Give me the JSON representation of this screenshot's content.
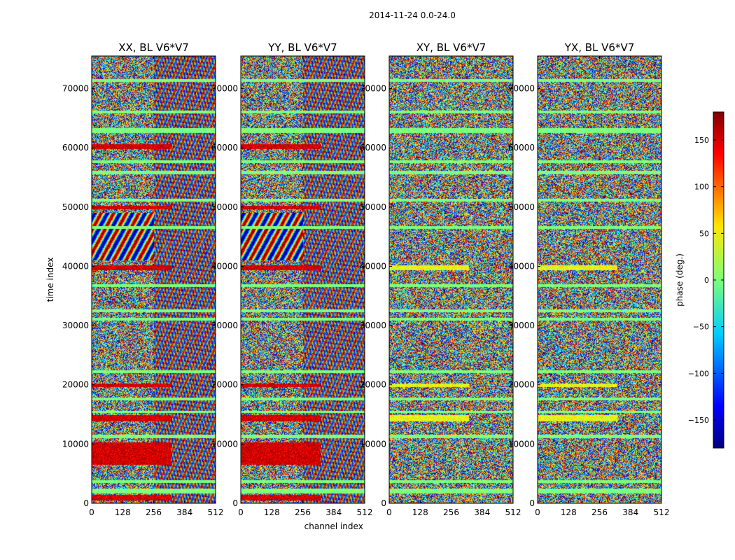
{
  "suptitle": "2014-11-24 0.0-24.0",
  "chart_data": [
    {
      "type": "heatmap",
      "title": "XX, BL V6*V7",
      "xlabel": "",
      "ylabel": "time index",
      "xlim": [
        0,
        512
      ],
      "ylim": [
        0,
        75500
      ],
      "xticks": [
        0,
        128,
        256,
        384,
        512
      ],
      "yticks": [
        0,
        10000,
        20000,
        30000,
        40000,
        50000,
        60000,
        70000
      ],
      "value": "phase (deg.)",
      "coherent_bands": [
        [
          400,
          1400
        ],
        [
          6500,
          10200
        ],
        [
          13800,
          14800
        ],
        [
          19600,
          20200
        ],
        [
          39300,
          40200
        ],
        [
          49600,
          50200
        ],
        [
          59800,
          60600
        ]
      ],
      "flagged_bands": [
        [
          1600,
          2400
        ],
        [
          3400,
          3900
        ],
        [
          11000,
          11500
        ],
        [
          15200,
          15600
        ],
        [
          17300,
          17800
        ],
        [
          22000,
          22400
        ],
        [
          30800,
          31300
        ],
        [
          32200,
          32700
        ],
        [
          36500,
          37000
        ],
        [
          46300,
          46800
        ],
        [
          51000,
          51400
        ],
        [
          55600,
          56200
        ],
        [
          57400,
          57900
        ],
        [
          62600,
          63400
        ],
        [
          65900,
          66300
        ],
        [
          71200,
          71600
        ]
      ]
    },
    {
      "type": "heatmap",
      "title": "YY, BL V6*V7",
      "xlabel": "channel index",
      "ylabel": "",
      "xlim": [
        0,
        512
      ],
      "ylim": [
        0,
        75500
      ],
      "xticks": [
        0,
        128,
        256,
        384,
        512
      ],
      "yticks": [
        0,
        10000,
        20000,
        30000,
        40000,
        50000,
        60000,
        70000
      ],
      "value": "phase (deg.)",
      "coherent_bands": [
        [
          400,
          1400
        ],
        [
          6500,
          10200
        ],
        [
          13800,
          14800
        ],
        [
          19600,
          20200
        ],
        [
          39300,
          40200
        ],
        [
          49600,
          50200
        ],
        [
          59800,
          60600
        ]
      ],
      "flagged_bands": [
        [
          1600,
          2400
        ],
        [
          3400,
          3900
        ],
        [
          11000,
          11500
        ],
        [
          15200,
          15600
        ],
        [
          17300,
          17800
        ],
        [
          22000,
          22400
        ],
        [
          30800,
          31300
        ],
        [
          32200,
          32700
        ],
        [
          36500,
          37000
        ],
        [
          46300,
          46800
        ],
        [
          51000,
          51400
        ],
        [
          55600,
          56200
        ],
        [
          57400,
          57900
        ],
        [
          62600,
          63400
        ],
        [
          65900,
          66300
        ],
        [
          71200,
          71600
        ]
      ]
    },
    {
      "type": "heatmap",
      "title": "XY, BL V6*V7",
      "xlabel": "",
      "ylabel": "",
      "xlim": [
        0,
        512
      ],
      "ylim": [
        0,
        75500
      ],
      "xticks": [
        0,
        128,
        256,
        384,
        512
      ],
      "yticks": [
        0,
        10000,
        20000,
        30000,
        40000,
        50000,
        60000,
        70000
      ],
      "value": "phase (deg.)",
      "coherent_bands": [
        [
          13800,
          14800
        ],
        [
          19600,
          20200
        ],
        [
          39300,
          40200
        ]
      ],
      "flagged_bands": [
        [
          1600,
          2400
        ],
        [
          3400,
          3900
        ],
        [
          11000,
          11500
        ],
        [
          15200,
          15600
        ],
        [
          17300,
          17800
        ],
        [
          22000,
          22400
        ],
        [
          30800,
          31300
        ],
        [
          32200,
          32700
        ],
        [
          36500,
          37000
        ],
        [
          46300,
          46800
        ],
        [
          51000,
          51400
        ],
        [
          55600,
          56200
        ],
        [
          57400,
          57900
        ],
        [
          62600,
          63400
        ],
        [
          65900,
          66300
        ],
        [
          71200,
          71600
        ]
      ]
    },
    {
      "type": "heatmap",
      "title": "YX, BL V6*V7",
      "xlabel": "",
      "ylabel": "",
      "xlim": [
        0,
        512
      ],
      "ylim": [
        0,
        75500
      ],
      "xticks": [
        0,
        128,
        256,
        384,
        512
      ],
      "yticks": [
        0,
        10000,
        20000,
        30000,
        40000,
        50000,
        60000,
        70000
      ],
      "value": "phase (deg.)",
      "coherent_bands": [
        [
          13800,
          14800
        ],
        [
          19600,
          20200
        ],
        [
          39300,
          40200
        ]
      ],
      "flagged_bands": [
        [
          1600,
          2400
        ],
        [
          3400,
          3900
        ],
        [
          11000,
          11500
        ],
        [
          15200,
          15600
        ],
        [
          17300,
          17800
        ],
        [
          22000,
          22400
        ],
        [
          30800,
          31300
        ],
        [
          32200,
          32700
        ],
        [
          36500,
          37000
        ],
        [
          46300,
          46800
        ],
        [
          51000,
          51400
        ],
        [
          55600,
          56200
        ],
        [
          57400,
          57900
        ],
        [
          62600,
          63400
        ],
        [
          65900,
          66300
        ],
        [
          71200,
          71600
        ]
      ]
    }
  ],
  "colorbar": {
    "label": "phase (deg.)",
    "vmin": -180,
    "vmax": 180,
    "ticks": [
      150,
      100,
      50,
      0,
      -50,
      -100,
      -150
    ],
    "tick_labels": [
      "150",
      "100",
      "50",
      "0",
      "−50",
      "−100",
      "−150"
    ],
    "colormap": [
      "#00007f",
      "#0000ff",
      "#007fff",
      "#00ffff",
      "#7fff7f",
      "#ffff00",
      "#ff7f00",
      "#ff0000",
      "#7f0000"
    ]
  }
}
